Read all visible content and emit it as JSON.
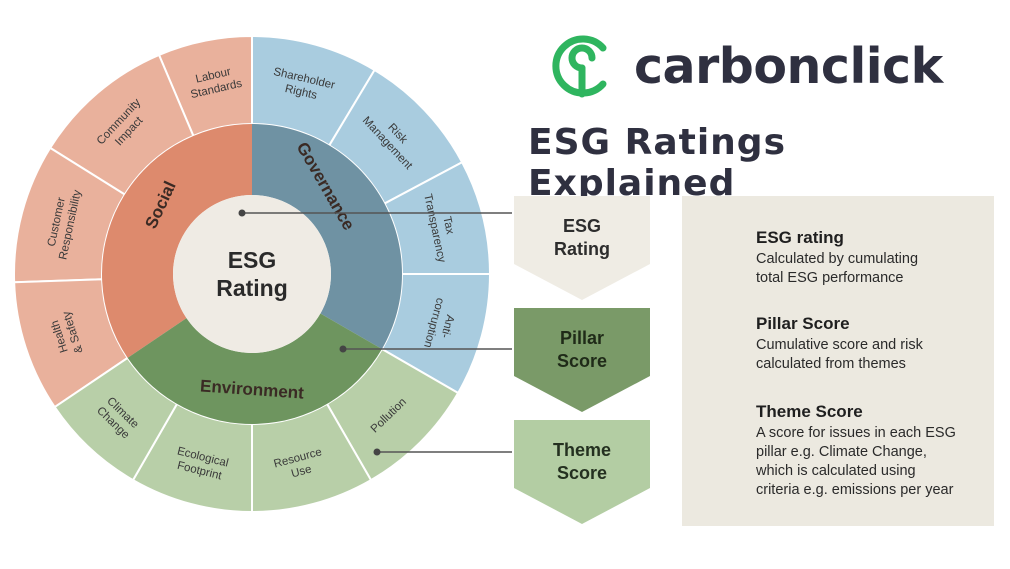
{
  "center": {
    "line1": "ESG",
    "line2": "Rating"
  },
  "pillars": [
    {
      "label": "Social"
    },
    {
      "label": "Governance"
    },
    {
      "label": "Environment"
    }
  ],
  "themes": [
    {
      "lines": [
        "Labour",
        "Standards"
      ],
      "pillar": "Social"
    },
    {
      "lines": [
        "Community",
        "Impact"
      ],
      "pillar": "Social"
    },
    {
      "lines": [
        "Customer",
        "Responsibility"
      ],
      "pillar": "Social"
    },
    {
      "lines": [
        "Health",
        "& Safety"
      ],
      "pillar": "Social"
    },
    {
      "lines": [
        "Shareholder",
        "Rights"
      ],
      "pillar": "Governance"
    },
    {
      "lines": [
        "Risk",
        "Management"
      ],
      "pillar": "Governance"
    },
    {
      "lines": [
        "Tax",
        "Transparency"
      ],
      "pillar": "Governance"
    },
    {
      "lines": [
        "Anti-",
        "corruption"
      ],
      "pillar": "Governance"
    },
    {
      "lines": [
        "Pollution"
      ],
      "pillar": "Environment"
    },
    {
      "lines": [
        "Resource",
        "Use"
      ],
      "pillar": "Environment"
    },
    {
      "lines": [
        "Ecological",
        "Footprint"
      ],
      "pillar": "Environment"
    },
    {
      "lines": [
        "Climate",
        "Change"
      ],
      "pillar": "Environment"
    }
  ],
  "colors": {
    "social_outer": "#e9b19c",
    "social_inner": "#dd8a6d",
    "governance_outer": "#a9ccdf",
    "governance_inner": "#6f92a3",
    "environment_outer": "#b8cfa8",
    "environment_inner": "#6e955f",
    "center": "#efebe4",
    "logo_green": "#2fb55f",
    "dark_text": "#2f3040",
    "pillar_text": "#3a2a24"
  },
  "brand": {
    "name": "carbonclick",
    "icon": "carbonclick-logo-icon"
  },
  "title": "ESG Ratings Explained",
  "arrows": [
    {
      "lines": [
        "ESG",
        "Rating"
      ],
      "fill": "#efece4",
      "text_color": "#2d2d2d"
    },
    {
      "lines": [
        "Pillar",
        "Score"
      ],
      "fill": "#7a9a68",
      "text_color": "#1f2a18"
    },
    {
      "lines": [
        "Theme",
        "Score"
      ],
      "fill": "#b3cda3",
      "text_color": "#243020"
    }
  ],
  "definitions": [
    {
      "heading": "ESG rating",
      "lines": [
        "Calculated by cumulating",
        "total ESG performance"
      ]
    },
    {
      "heading": "Pillar Score",
      "lines": [
        "Cumulative score and risk",
        "calculated from themes"
      ]
    },
    {
      "heading": "Theme Score",
      "lines": [
        "A score for issues in each ESG",
        "pillar e.g. Climate Change,",
        "which is calculated using",
        "criteria e.g. emissions per year"
      ]
    }
  ]
}
